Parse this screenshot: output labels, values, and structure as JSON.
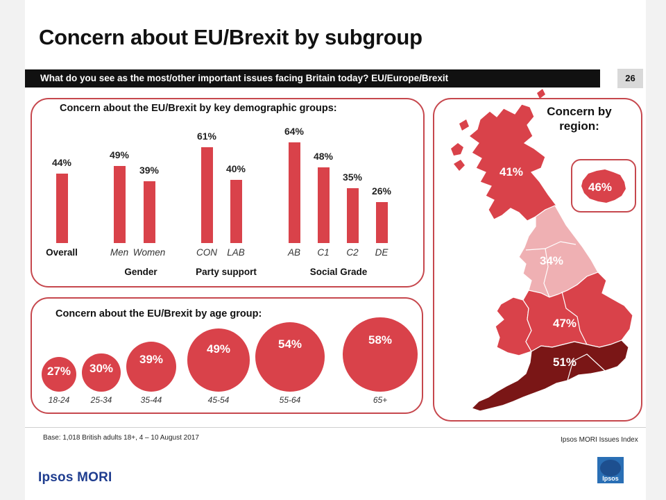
{
  "title": "Concern about EU/Brexit by subgroup",
  "question": "What do you see as the most/other important issues facing Britain today? EU/Europe/Brexit",
  "page_number": "26",
  "colors": {
    "accent": "#d9424a",
    "panel_border": "#c6474d",
    "dark_red": "#7a1616",
    "light_pink": "#efb0b3"
  },
  "demographics": {
    "title": "Concern about the EU/Brexit by key demographic groups:",
    "groups": {
      "gender": "Gender",
      "party": "Party support",
      "social": "Social Grade"
    }
  },
  "age": {
    "title": "Concern about the EU/Brexit by age group:"
  },
  "chart_data": [
    {
      "type": "bar",
      "categories": [
        "Overall",
        "Men",
        "Women",
        "CON",
        "LAB",
        "AB",
        "C1",
        "C2",
        "DE"
      ],
      "values": [
        44,
        49,
        39,
        61,
        40,
        64,
        48,
        35,
        26
      ],
      "labels": [
        "44%",
        "49%",
        "39%",
        "61%",
        "40%",
        "64%",
        "48%",
        "35%",
        "26%"
      ],
      "title": "Concern about the EU/Brexit by key demographic groups:",
      "ylim": [
        0,
        100
      ]
    },
    {
      "type": "scatter",
      "categories": [
        "18-24",
        "25-34",
        "35-44",
        "45-54",
        "55-64",
        "65+"
      ],
      "values": [
        27,
        30,
        39,
        49,
        54,
        58
      ],
      "labels": [
        "27%",
        "30%",
        "39%",
        "49%",
        "54%",
        "58%"
      ],
      "title": "Concern about the EU/Brexit by age group:"
    }
  ],
  "region": {
    "title": "Concern by region:",
    "values": {
      "scotland": "41%",
      "north": "34%",
      "midlands": "47%",
      "south": "51%",
      "london": "46%"
    }
  },
  "footer": {
    "base": "Base: 1,018 British adults 18+, 4 – 10 August 2017",
    "source": "Ipsos MORI Issues Index",
    "brand": "Ipsos MORI",
    "logo_text": "Ipsos"
  }
}
